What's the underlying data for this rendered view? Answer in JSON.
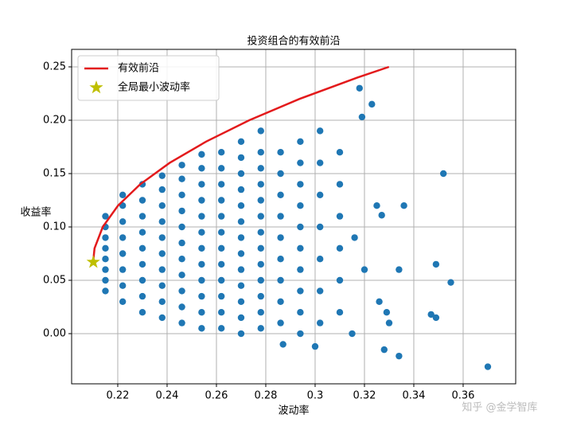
{
  "chart_data": {
    "type": "scatter",
    "title": "投资组合的有效前沿",
    "xlabel": "波动率",
    "ylabel": "收益率",
    "watermark": "知乎 @金学智库",
    "xlim": [
      0.2013,
      0.3813
    ],
    "ylim": [
      -0.047,
      0.2664
    ],
    "xticks": [
      0.22,
      0.24,
      0.26,
      0.28,
      0.3,
      0.32,
      0.34,
      0.36
    ],
    "yticks": [
      {
        "value": 0,
        "label": "0.00"
      },
      0.05,
      {
        "value": 0.1,
        "label": "0.10"
      },
      0.15,
      {
        "value": 0.2,
        "label": "0.20"
      },
      0.25
    ],
    "grid": true,
    "legend": "upper left",
    "series": [
      {
        "type": "scatter",
        "color": "#1f77b4",
        "x": [
          0.215,
          0.215,
          0.215,
          0.215,
          0.215,
          0.215,
          0.215,
          0.215,
          0.222,
          0.222,
          0.222,
          0.222,
          0.222,
          0.222,
          0.222,
          0.222,
          0.23,
          0.23,
          0.23,
          0.23,
          0.23,
          0.23,
          0.23,
          0.23,
          0.23,
          0.238,
          0.238,
          0.238,
          0.238,
          0.238,
          0.238,
          0.238,
          0.238,
          0.238,
          0.238,
          0.246,
          0.246,
          0.246,
          0.246,
          0.246,
          0.246,
          0.246,
          0.246,
          0.246,
          0.246,
          0.246,
          0.254,
          0.254,
          0.254,
          0.254,
          0.254,
          0.254,
          0.254,
          0.254,
          0.254,
          0.254,
          0.254,
          0.254,
          0.262,
          0.262,
          0.262,
          0.262,
          0.262,
          0.262,
          0.262,
          0.262,
          0.262,
          0.262,
          0.262,
          0.262,
          0.27,
          0.27,
          0.27,
          0.27,
          0.27,
          0.27,
          0.27,
          0.27,
          0.27,
          0.27,
          0.27,
          0.27,
          0.27,
          0.278,
          0.278,
          0.278,
          0.278,
          0.278,
          0.278,
          0.278,
          0.278,
          0.278,
          0.278,
          0.278,
          0.278,
          0.278,
          0.286,
          0.286,
          0.286,
          0.286,
          0.286,
          0.286,
          0.286,
          0.286,
          0.286,
          0.294,
          0.294,
          0.294,
          0.294,
          0.294,
          0.294,
          0.294,
          0.294,
          0.294,
          0.294,
          0.302,
          0.302,
          0.302,
          0.302,
          0.302,
          0.302,
          0.302,
          0.31,
          0.31,
          0.31,
          0.31,
          0.31,
          0.31,
          0.318,
          0.323,
          0.319,
          0.316,
          0.32,
          0.325,
          0.327,
          0.336,
          0.334,
          0.329,
          0.328,
          0.334,
          0.352,
          0.349,
          0.355,
          0.347,
          0.349,
          0.37,
          0.3,
          0.287,
          0.326,
          0.33,
          0.315
        ],
        "y": [
          0.04,
          0.05,
          0.06,
          0.07,
          0.08,
          0.09,
          0.1,
          0.11,
          0.03,
          0.045,
          0.06,
          0.075,
          0.09,
          0.105,
          0.12,
          0.13,
          0.02,
          0.035,
          0.05,
          0.065,
          0.08,
          0.095,
          0.11,
          0.125,
          0.14,
          0.015,
          0.03,
          0.045,
          0.06,
          0.075,
          0.09,
          0.105,
          0.12,
          0.135,
          0.148,
          0.01,
          0.025,
          0.04,
          0.055,
          0.07,
          0.085,
          0.1,
          0.115,
          0.13,
          0.145,
          0.158,
          0.005,
          0.02,
          0.035,
          0.05,
          0.065,
          0.08,
          0.095,
          0.11,
          0.125,
          0.14,
          0.155,
          0.168,
          0.005,
          0.02,
          0.035,
          0.05,
          0.065,
          0.08,
          0.095,
          0.11,
          0.125,
          0.14,
          0.155,
          0.17,
          0,
          0.015,
          0.03,
          0.045,
          0.06,
          0.075,
          0.09,
          0.105,
          0.12,
          0.135,
          0.15,
          0.165,
          0.18,
          0.005,
          0.02,
          0.035,
          0.05,
          0.065,
          0.08,
          0.095,
          0.11,
          0.125,
          0.14,
          0.155,
          0.17,
          0.19,
          0.01,
          0.03,
          0.05,
          0.07,
          0.09,
          0.11,
          0.13,
          0.15,
          0.17,
          0,
          0.02,
          0.04,
          0.06,
          0.08,
          0.1,
          0.12,
          0.14,
          0.16,
          0.18,
          0.01,
          0.04,
          0.07,
          0.1,
          0.13,
          0.16,
          0.19,
          0.02,
          0.05,
          0.08,
          0.11,
          0.14,
          0.17,
          0.23,
          0.215,
          0.203,
          0.09,
          0.06,
          0.12,
          0.111,
          0.12,
          0.06,
          0.02,
          -0.015,
          -0.021,
          0.15,
          0.065,
          0.048,
          0.018,
          0.015,
          -0.031,
          -0.012,
          -0.01,
          0.03,
          0.01,
          0
        ]
      },
      {
        "type": "line",
        "name": "有效前沿",
        "color": "#e31a1c",
        "x": [
          0.21,
          0.2106,
          0.2139,
          0.2201,
          0.2291,
          0.241,
          0.2558,
          0.2733,
          0.2937,
          0.3171,
          0.3299
        ],
        "y": [
          0.067,
          0.08,
          0.1,
          0.12,
          0.14,
          0.16,
          0.18,
          0.2,
          0.22,
          0.24,
          0.25
        ]
      },
      {
        "type": "star",
        "name": "全局最小波动率",
        "color": "#bfbf00",
        "x": [
          0.2101
        ],
        "y": [
          0.067
        ]
      }
    ]
  }
}
